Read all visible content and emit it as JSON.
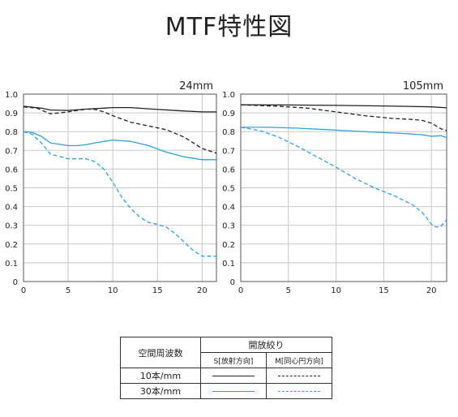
{
  "page_title": "MTF特性図",
  "colors": {
    "black": "#222222",
    "blue": "#29a3dd",
    "grid": "#c8c8c8"
  },
  "legend": {
    "header_left": "空間周波数",
    "header_right": "開放絞り",
    "col_s": "S[放射方向]",
    "col_m": "M[同心円方向]",
    "row1_label": "10本/mm",
    "row2_label": "30本/mm"
  },
  "chart_data": [
    {
      "type": "line",
      "title": "24mm",
      "xlim": [
        0,
        21.6
      ],
      "ylim": [
        0,
        1.0
      ],
      "x_ticks": [
        0,
        5,
        10,
        15,
        20
      ],
      "y_ticks": [
        "0",
        "0.1",
        "0.2",
        "0.3",
        "0.4",
        "0.5",
        "0.6",
        "0.7",
        "0.8",
        "0.9",
        "1.0"
      ],
      "grid": true,
      "series": [
        {
          "key": "10S",
          "style": "solid",
          "color": "black",
          "x": [
            0,
            2,
            3,
            5,
            7,
            9,
            10,
            12,
            15,
            18,
            20,
            21.6
          ],
          "y": [
            0.935,
            0.925,
            0.915,
            0.913,
            0.92,
            0.925,
            0.928,
            0.928,
            0.918,
            0.91,
            0.905,
            0.905
          ]
        },
        {
          "key": "10M",
          "style": "dashed",
          "color": "black",
          "x": [
            0,
            1.5,
            3,
            5,
            7,
            8,
            9,
            10,
            12,
            14,
            16,
            18,
            20,
            21.6
          ],
          "y": [
            0.932,
            0.925,
            0.895,
            0.905,
            0.92,
            0.918,
            0.905,
            0.885,
            0.85,
            0.83,
            0.81,
            0.77,
            0.71,
            0.685
          ]
        },
        {
          "key": "30S",
          "style": "solid",
          "color": "blue",
          "x": [
            0,
            1,
            2,
            3,
            5,
            6,
            7,
            8,
            10,
            12,
            14,
            16,
            18,
            20,
            21.6
          ],
          "y": [
            0.8,
            0.795,
            0.775,
            0.74,
            0.725,
            0.725,
            0.73,
            0.74,
            0.755,
            0.748,
            0.725,
            0.69,
            0.665,
            0.65,
            0.65
          ]
        },
        {
          "key": "30M",
          "style": "dashed",
          "color": "blue",
          "x": [
            0,
            1,
            2,
            3,
            5,
            7,
            8,
            9,
            10,
            11,
            12,
            13,
            14,
            15,
            16,
            17,
            18,
            19,
            20,
            21,
            21.6
          ],
          "y": [
            0.8,
            0.785,
            0.74,
            0.68,
            0.655,
            0.655,
            0.64,
            0.6,
            0.53,
            0.45,
            0.39,
            0.345,
            0.315,
            0.305,
            0.29,
            0.255,
            0.21,
            0.165,
            0.135,
            0.135,
            0.135
          ]
        }
      ]
    },
    {
      "type": "line",
      "title": "105mm",
      "xlim": [
        0,
        21.6
      ],
      "ylim": [
        0,
        1.0
      ],
      "x_ticks": [
        0,
        5,
        10,
        15,
        20
      ],
      "y_ticks": [
        "0",
        "0.1",
        "0.2",
        "0.3",
        "0.4",
        "0.5",
        "0.6",
        "0.7",
        "0.8",
        "0.9",
        "1.0"
      ],
      "grid": true,
      "series": [
        {
          "key": "10S",
          "style": "solid",
          "color": "black",
          "x": [
            0,
            5,
            10,
            15,
            20,
            21.6
          ],
          "y": [
            0.943,
            0.942,
            0.94,
            0.937,
            0.932,
            0.927
          ]
        },
        {
          "key": "10M",
          "style": "dashed",
          "color": "black",
          "x": [
            0,
            4,
            7,
            10,
            13,
            16,
            18,
            19,
            20,
            21,
            21.6
          ],
          "y": [
            0.943,
            0.935,
            0.925,
            0.905,
            0.885,
            0.87,
            0.865,
            0.86,
            0.845,
            0.815,
            0.805
          ]
        },
        {
          "key": "30S",
          "style": "solid",
          "color": "blue",
          "x": [
            0,
            3,
            6,
            10,
            14,
            17,
            19,
            20,
            21,
            21.6
          ],
          "y": [
            0.823,
            0.823,
            0.818,
            0.808,
            0.797,
            0.79,
            0.783,
            0.775,
            0.778,
            0.768
          ]
        },
        {
          "key": "30M",
          "style": "dashed",
          "color": "blue",
          "x": [
            0,
            2,
            4,
            6,
            8,
            10,
            12,
            14,
            16,
            18,
            19,
            19.5,
            20,
            20.5,
            21,
            21.6
          ],
          "y": [
            0.823,
            0.805,
            0.77,
            0.72,
            0.665,
            0.61,
            0.55,
            0.5,
            0.46,
            0.41,
            0.37,
            0.34,
            0.305,
            0.29,
            0.295,
            0.33
          ]
        }
      ]
    }
  ]
}
